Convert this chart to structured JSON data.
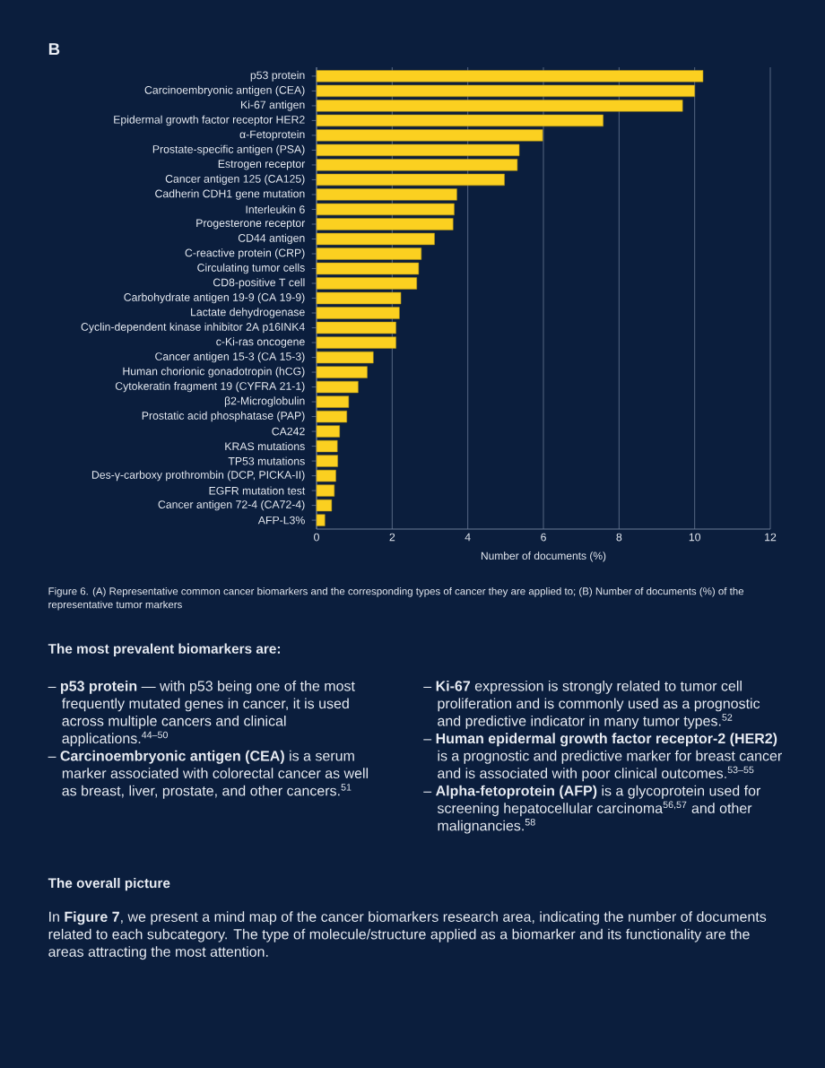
{
  "chart_data": {
    "type": "bar",
    "orientation": "horizontal",
    "color": "#fbd020",
    "xlabel": "Number of documents (%)",
    "xlim": [
      0,
      12
    ],
    "xticks": [
      0,
      2,
      4,
      6,
      8,
      10,
      12
    ],
    "grid": "x",
    "categories": [
      "p53 protein",
      "Carcinoembryonic antigen (CEA)",
      "Ki-67 antigen",
      "Epidermal growth factor receptor HER2",
      "α-Fetoprotein",
      "Prostate-specific antigen (PSA)",
      "Estrogen receptor",
      "Cancer antigen 125 (CA125)",
      "Cadherin CDH1 gene mutation",
      "Interleukin 6",
      "Progesterone receptor",
      "CD44 antigen",
      "C-reactive protein (CRP)",
      "Circulating tumor cells",
      "CD8-positive T cell",
      "Carbohydrate antigen 19-9 (CA 19-9)",
      "Lactate dehydrogenase",
      "Cyclin-dependent kinase inhibitor 2A p16INK4",
      "c-Ki-ras oncogene",
      "Cancer antigen 15-3 (CA 15-3)",
      "Human chorionic gonadotropin (hCG)",
      "Cytokeratin fragment 19 (CYFRA 21-1)",
      "β2-Microglobulin",
      "Prostatic acid phosphatase (PAP)",
      "CA242",
      "KRAS mutations",
      "TP53 mutations",
      "Des-γ-carboxy prothrombin (DCP, PICKA-II)",
      "EGFR mutation test",
      "Cancer antigen 72-4 (CA72-4)",
      "AFP-L3%"
    ],
    "values": [
      10.22,
      10.0,
      9.68,
      7.58,
      5.98,
      5.36,
      5.31,
      4.97,
      3.71,
      3.64,
      3.61,
      3.12,
      2.77,
      2.7,
      2.65,
      2.23,
      2.19,
      2.1,
      2.1,
      1.5,
      1.34,
      1.1,
      0.85,
      0.8,
      0.61,
      0.55,
      0.56,
      0.51,
      0.47,
      0.4,
      0.22
    ],
    "annotations": [
      "B",
      "Figure 6. (A) Representative common cancer biomarkers and the corresponding types of cancer they are applied to; (B) Number of documents (%) of the representative tumor markers",
      "The most prevalent biomarkers are:",
      "– **p53 protein** — with p53 being one of the most frequently mutated genes in cancer, it is used across multiple cancers and clinical applications.$^{44–50}$",
      "– **Carcinoembryonic antigen (CEA)** is a serum marker associated with colorectal cancer as well as breast, liver, prostate, and other cancers.$^{51}$",
      "– **Ki-67** expression is strongly related to tumor cell proliferation and is commonly used as a prognostic and predictive indicator in many tumor types.$^{52}$",
      "– **Human epidermal growth factor receptor-2 (HER2)** is a prognostic and predictive marker for breast cancer and is associated with poor clinical outcomes.$^{53–55}$",
      "– **Alpha-fetoprotein (AFP)** is a glycoprotein used for screening hepatocellular carcinoma$^{56,57}$ and other malignancies.$^{58}$",
      "The overall picture",
      "In **Figure 7**, we present a mind map of the cancer biomarkers research area, indicating the number of documents related to each subcategory. The type of molecule/structure applied as a biomarker and its functionality are the areas attracting the most attention."
    ]
  }
}
